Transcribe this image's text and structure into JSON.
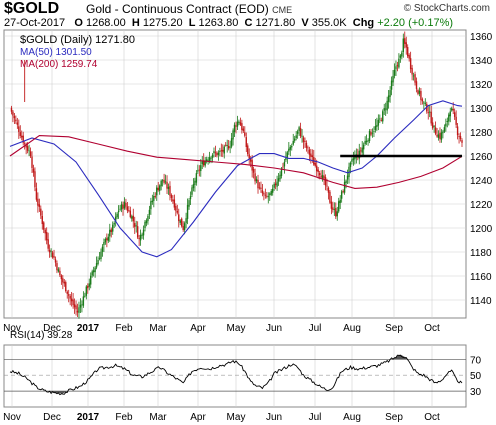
{
  "header": {
    "symbol": "$GOLD",
    "description": "Gold - Continuous Contract (EOD)",
    "exchange": "CME",
    "brand": "© StockCharts.com",
    "date": "27-Oct-2017",
    "open_label": "O",
    "open": "1268.00",
    "high_label": "H",
    "high": "1275.20",
    "low_label": "L",
    "low": "1263.80",
    "close_label": "C",
    "close": "1271.80",
    "volume_label": "V",
    "volume": "355.0K",
    "change_label": "Chg",
    "change": "+2.20 (+0.17%)"
  },
  "legend": {
    "main": "$GOLD (Daily) 1271.80",
    "ma50": "MA(50) 1301.50",
    "ma200": "MA(200) 1259.74"
  },
  "rsi_label": "RSI(14) 39.28",
  "colors": {
    "up": "#1a7a1a",
    "down": "#c01818",
    "ma50": "#2b2bbf",
    "ma200": "#b00030",
    "rsi": "#000000",
    "grid": "#d0d0d0"
  },
  "chart_data": [
    {
      "type": "candlestick",
      "title": "$GOLD (Daily) 1271.80",
      "x_ticks": [
        "Nov",
        "Dec",
        "2017",
        "Feb",
        "Mar",
        "Apr",
        "May",
        "Jun",
        "Jul",
        "Aug",
        "Sep",
        "Oct"
      ],
      "y_ticks": [
        1140,
        1160,
        1180,
        1200,
        1220,
        1240,
        1260,
        1280,
        1300,
        1320,
        1340,
        1360
      ],
      "ylim": [
        1125,
        1365
      ],
      "series": [
        {
          "name": "$GOLD (Daily) 1271.80",
          "close_path": [
            [
              0,
              1300
            ],
            [
              5,
              1285
            ],
            [
              10,
              1270
            ],
            [
              14,
              1262
            ],
            [
              18,
              1225
            ],
            [
              22,
              1205
            ],
            [
              26,
              1185
            ],
            [
              30,
              1175
            ],
            [
              34,
              1160
            ],
            [
              38,
              1150
            ],
            [
              42,
              1138
            ],
            [
              46,
              1130
            ],
            [
              50,
              1142
            ],
            [
              54,
              1155
            ],
            [
              58,
              1168
            ],
            [
              62,
              1180
            ],
            [
              66,
              1192
            ],
            [
              70,
              1200
            ],
            [
              74,
              1215
            ],
            [
              78,
              1220
            ],
            [
              82,
              1212
            ],
            [
              86,
              1200
            ],
            [
              88,
              1190
            ],
            [
              92,
              1205
            ],
            [
              96,
              1220
            ],
            [
              100,
              1232
            ],
            [
              104,
              1240
            ],
            [
              108,
              1232
            ],
            [
              112,
              1220
            ],
            [
              115,
              1208
            ],
            [
              118,
              1200
            ],
            [
              122,
              1222
            ],
            [
              126,
              1240
            ],
            [
              130,
              1252
            ],
            [
              134,
              1258
            ],
            [
              138,
              1262
            ],
            [
              142,
              1262
            ],
            [
              146,
              1265
            ],
            [
              150,
              1270
            ],
            [
              153,
              1285
            ],
            [
              156,
              1290
            ],
            [
              159,
              1280
            ],
            [
              162,
              1262
            ],
            [
              166,
              1245
            ],
            [
              170,
              1232
            ],
            [
              174,
              1225
            ],
            [
              178,
              1228
            ],
            [
              182,
              1240
            ],
            [
              186,
              1252
            ],
            [
              190,
              1265
            ],
            [
              194,
              1275
            ],
            [
              197,
              1282
            ],
            [
              200,
              1272
            ],
            [
              204,
              1262
            ],
            [
              208,
              1252
            ],
            [
              212,
              1245
            ],
            [
              216,
              1232
            ],
            [
              219,
              1218
            ],
            [
              222,
              1212
            ],
            [
              226,
              1228
            ],
            [
              230,
              1245
            ],
            [
              234,
              1258
            ],
            [
              238,
              1262
            ],
            [
              242,
              1272
            ],
            [
              246,
              1280
            ],
            [
              250,
              1285
            ],
            [
              254,
              1295
            ],
            [
              257,
              1305
            ],
            [
              260,
              1320
            ],
            [
              263,
              1335
            ],
            [
              266,
              1342
            ],
            [
              268,
              1355
            ],
            [
              270,
              1350
            ],
            [
              273,
              1335
            ],
            [
              277,
              1318
            ],
            [
              281,
              1305
            ],
            [
              285,
              1298
            ],
            [
              289,
              1282
            ],
            [
              293,
              1276
            ],
            [
              297,
              1285
            ],
            [
              300,
              1300
            ],
            [
              302,
              1295
            ],
            [
              305,
              1280
            ],
            [
              308,
              1272
            ]
          ]
        },
        {
          "name": "MA(50) 1301.50",
          "path": [
            [
              0,
              1268
            ],
            [
              15,
              1275
            ],
            [
              30,
              1270
            ],
            [
              45,
              1255
            ],
            [
              60,
              1228
            ],
            [
              75,
              1200
            ],
            [
              90,
              1180
            ],
            [
              100,
              1176
            ],
            [
              110,
              1182
            ],
            [
              125,
              1205
            ],
            [
              140,
              1230
            ],
            [
              155,
              1252
            ],
            [
              170,
              1262
            ],
            [
              180,
              1262
            ],
            [
              190,
              1258
            ],
            [
              200,
              1258
            ],
            [
              210,
              1255
            ],
            [
              220,
              1250
            ],
            [
              230,
              1246
            ],
            [
              240,
              1250
            ],
            [
              250,
              1260
            ],
            [
              262,
              1275
            ],
            [
              275,
              1290
            ],
            [
              285,
              1302
            ],
            [
              295,
              1306
            ],
            [
              305,
              1302
            ],
            [
              308,
              1301.5
            ]
          ]
        },
        {
          "name": "MA(200) 1259.74",
          "path": [
            [
              0,
              1260
            ],
            [
              20,
              1277
            ],
            [
              40,
              1276
            ],
            [
              60,
              1270
            ],
            [
              80,
              1264
            ],
            [
              100,
              1259
            ],
            [
              120,
              1257
            ],
            [
              140,
              1255
            ],
            [
              160,
              1253
            ],
            [
              180,
              1250
            ],
            [
              200,
              1246
            ],
            [
              220,
              1238
            ],
            [
              235,
              1233
            ],
            [
              250,
              1234
            ],
            [
              265,
              1238
            ],
            [
              280,
              1243
            ],
            [
              295,
              1250
            ],
            [
              308,
              1259.74
            ]
          ]
        },
        {
          "name": "support",
          "path": [
            [
              225,
              1260
            ],
            [
              308,
              1260
            ]
          ]
        }
      ]
    },
    {
      "type": "line",
      "title": "RSI(14) 39.28",
      "y_ticks": [
        30,
        50,
        70
      ],
      "ylim": [
        10,
        88
      ],
      "x_ticks": [
        "Nov",
        "Dec",
        "2017",
        "Feb",
        "Mar",
        "Apr",
        "May",
        "Jun",
        "Jul",
        "Aug",
        "Sep",
        "Oct"
      ],
      "series": [
        {
          "name": "RSI(14) 39.28",
          "path": [
            [
              0,
              55
            ],
            [
              6,
              52
            ],
            [
              12,
              45
            ],
            [
              18,
              35
            ],
            [
              24,
              30
            ],
            [
              30,
              28
            ],
            [
              36,
              27
            ],
            [
              42,
              32
            ],
            [
              48,
              36
            ],
            [
              54,
              45
            ],
            [
              60,
              58
            ],
            [
              66,
              60
            ],
            [
              72,
              62
            ],
            [
              78,
              58
            ],
            [
              84,
              50
            ],
            [
              90,
              48
            ],
            [
              96,
              54
            ],
            [
              102,
              60
            ],
            [
              108,
              52
            ],
            [
              114,
              45
            ],
            [
              118,
              40
            ],
            [
              124,
              55
            ],
            [
              130,
              60
            ],
            [
              136,
              58
            ],
            [
              142,
              62
            ],
            [
              148,
              64
            ],
            [
              152,
              68
            ],
            [
              156,
              65
            ],
            [
              160,
              55
            ],
            [
              164,
              42
            ],
            [
              168,
              36
            ],
            [
              172,
              34
            ],
            [
              176,
              40
            ],
            [
              180,
              52
            ],
            [
              186,
              58
            ],
            [
              192,
              64
            ],
            [
              196,
              60
            ],
            [
              200,
              50
            ],
            [
              204,
              45
            ],
            [
              208,
              40
            ],
            [
              212,
              35
            ],
            [
              216,
              32
            ],
            [
              220,
              35
            ],
            [
              226,
              55
            ],
            [
              232,
              60
            ],
            [
              238,
              58
            ],
            [
              244,
              60
            ],
            [
              250,
              62
            ],
            [
              256,
              66
            ],
            [
              262,
              72
            ],
            [
              266,
              76
            ],
            [
              270,
              72
            ],
            [
              274,
              60
            ],
            [
              278,
              52
            ],
            [
              282,
              50
            ],
            [
              286,
              45
            ],
            [
              290,
              40
            ],
            [
              294,
              44
            ],
            [
              298,
              52
            ],
            [
              301,
              55
            ],
            [
              304,
              45
            ],
            [
              308,
              39.28
            ]
          ]
        }
      ]
    }
  ]
}
